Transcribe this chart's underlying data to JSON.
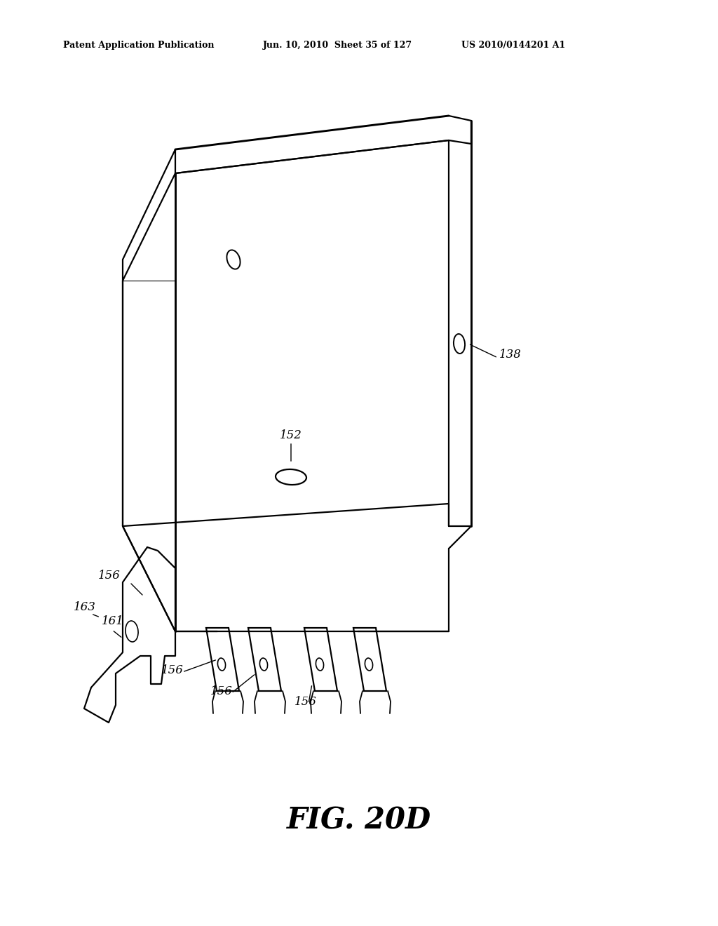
{
  "title": "FIG. 20D",
  "header_left": "Patent Application Publication",
  "header_mid": "Jun. 10, 2010  Sheet 35 of 127",
  "header_right": "US 2010/0144201 A1",
  "bg_color": "#ffffff",
  "line_color": "#000000",
  "label_138": "138",
  "label_152": "152",
  "label_156": "156",
  "label_161": "161",
  "label_163": "163",
  "fig_label": "FIG. 20D",
  "line_width": 1.5
}
